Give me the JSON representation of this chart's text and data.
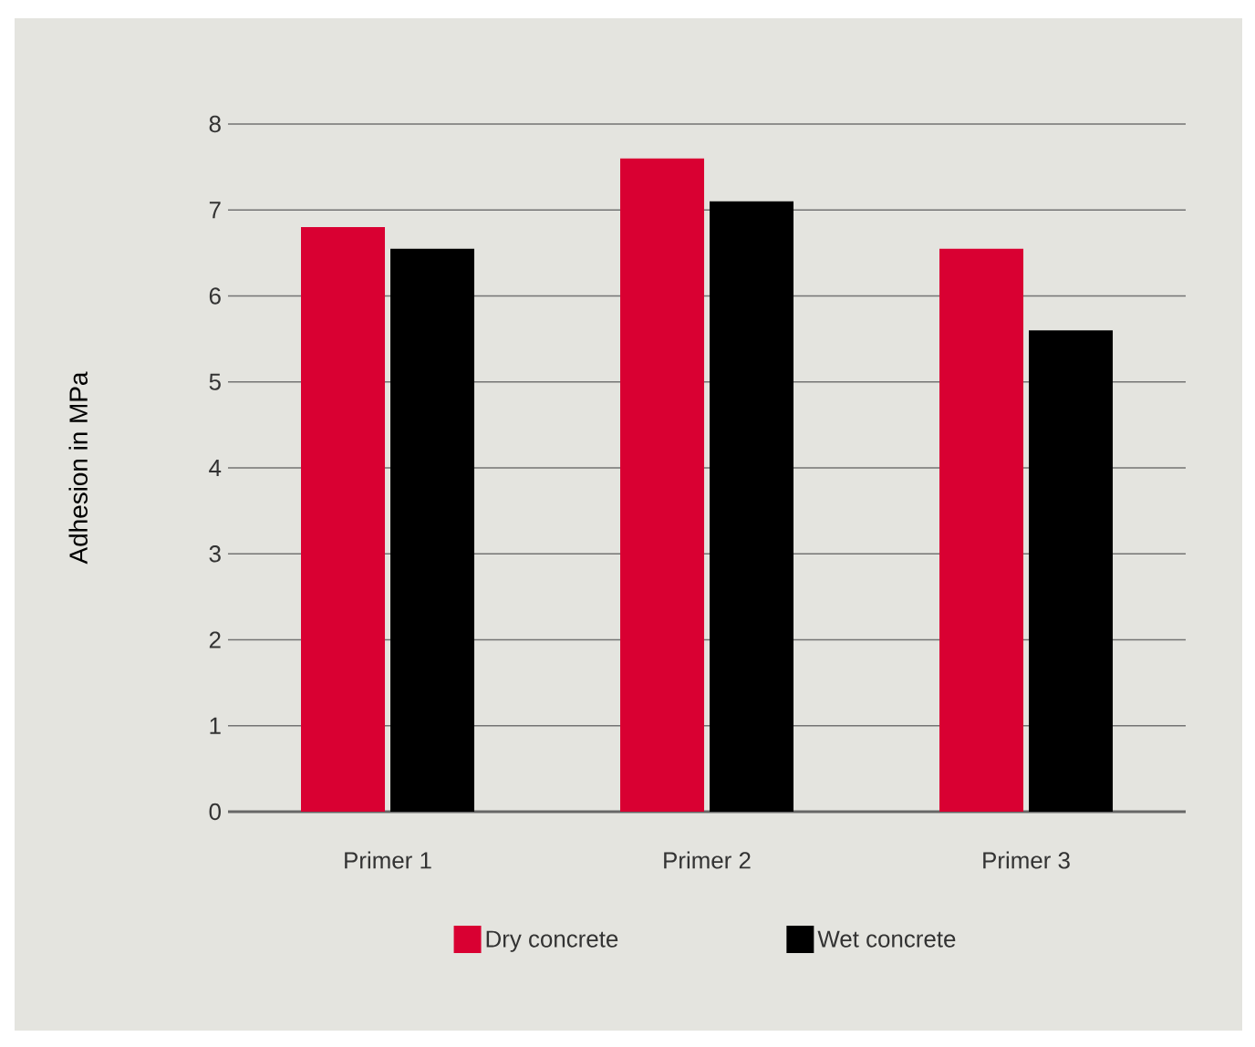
{
  "chart_data": {
    "type": "bar",
    "ylabel": "Adhesion in MPa",
    "categories": [
      "Primer 1",
      "Primer 2",
      "Primer 3"
    ],
    "series": [
      {
        "name": "Dry concrete",
        "color": "#d90032",
        "values": [
          6.8,
          7.6,
          6.55
        ]
      },
      {
        "name": "Wet concrete",
        "color": "#000000",
        "values": [
          6.55,
          7.1,
          5.6
        ]
      }
    ],
    "ylim": [
      0,
      8
    ],
    "yticks": [
      0,
      1,
      2,
      3,
      4,
      5,
      6,
      7,
      8
    ],
    "grid": "y",
    "legend": "bottom"
  }
}
